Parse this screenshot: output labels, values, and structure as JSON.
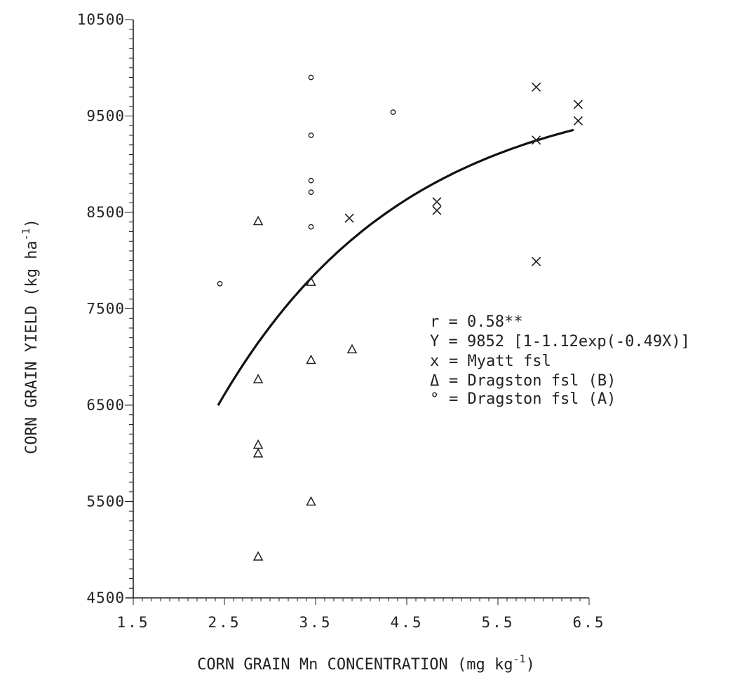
{
  "chart_data": {
    "type": "scatter",
    "title": "",
    "xlabel": "CORN GRAIN Mn CONCENTRATION (mg kg",
    "xlabel_sup": "-1",
    "xlabel_close": ")",
    "ylabel": "CORN GRAIN YIELD (kg ha",
    "ylabel_sup": "-1",
    "ylabel_close": ")",
    "xlim": [
      1.5,
      6.5
    ],
    "ylim": [
      4500,
      10500
    ],
    "x_tick_values": [
      1.5,
      2.5,
      3.5,
      4.5,
      5.5,
      6.5
    ],
    "x_tick_labels": [
      "1.5",
      "2.5",
      "3.5",
      "4.5",
      "5.5",
      "6.5"
    ],
    "y_tick_values": [
      4500,
      5500,
      6500,
      7500,
      8500,
      9500,
      10500
    ],
    "y_tick_labels": [
      "4500",
      "5500",
      "6500",
      "7500",
      "8500",
      "9500",
      "10500"
    ],
    "grid": false,
    "legend_position": "right-middle",
    "annotations": [
      "r = 0.58**",
      "Y = 9852 [1-1.12exp(-0.49X)]"
    ],
    "legend": [
      {
        "symbol": "x",
        "label": "= Myatt fsl"
      },
      {
        "symbol": "Δ",
        "label": "= Dragston fsl (B)"
      },
      {
        "symbol": "°",
        "label": "= Dragston fsl (A)"
      }
    ],
    "series": [
      {
        "name": "Myatt fsl",
        "marker": "x",
        "points": [
          {
            "x": 3.87,
            "y": 8440
          },
          {
            "x": 4.83,
            "y": 8610
          },
          {
            "x": 4.83,
            "y": 8520
          },
          {
            "x": 5.92,
            "y": 9800
          },
          {
            "x": 5.92,
            "y": 9250
          },
          {
            "x": 5.92,
            "y": 7990
          },
          {
            "x": 6.38,
            "y": 9620
          },
          {
            "x": 6.38,
            "y": 9450
          }
        ]
      },
      {
        "name": "Dragston fsl (B)",
        "marker": "triangle",
        "points": [
          {
            "x": 2.87,
            "y": 8410
          },
          {
            "x": 2.87,
            "y": 6770
          },
          {
            "x": 2.87,
            "y": 6090
          },
          {
            "x": 2.87,
            "y": 6000
          },
          {
            "x": 2.87,
            "y": 4930
          },
          {
            "x": 3.45,
            "y": 7780
          },
          {
            "x": 3.45,
            "y": 6970
          },
          {
            "x": 3.45,
            "y": 5500
          },
          {
            "x": 3.9,
            "y": 7080
          }
        ]
      },
      {
        "name": "Dragston fsl (A)",
        "marker": "circle",
        "points": [
          {
            "x": 2.45,
            "y": 7760
          },
          {
            "x": 3.45,
            "y": 9900
          },
          {
            "x": 3.45,
            "y": 9300
          },
          {
            "x": 3.45,
            "y": 8830
          },
          {
            "x": 3.45,
            "y": 8710
          },
          {
            "x": 3.45,
            "y": 8350
          },
          {
            "x": 4.35,
            "y": 9540
          }
        ]
      }
    ],
    "fit_curve": {
      "a": 9852,
      "b": 1.12,
      "k": 0.49,
      "x_range": [
        2.43,
        6.33
      ]
    }
  }
}
